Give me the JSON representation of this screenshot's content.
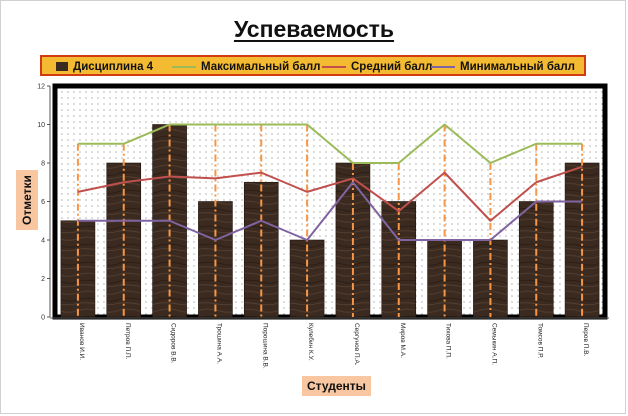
{
  "chart_data": {
    "type": "bar",
    "title": "Успеваемость",
    "xlabel": "Студенты",
    "ylabel": "Отметки",
    "ylim": [
      0,
      12
    ],
    "yticks": [
      0,
      2,
      4,
      6,
      8,
      10,
      12
    ],
    "grid": false,
    "legend_position": "top",
    "categories": [
      "Иванов И.И.",
      "Петров П.П.",
      "Сидоров В.В.",
      "Трошина А.А.",
      "Порошина В.В.",
      "Кулебин К.У.",
      "Сергунов П.А.",
      "Миров М.А.",
      "Тихова П.П.",
      "Семыкин А.П.",
      "Томсов П.Р.",
      "Перов П.В."
    ],
    "series": [
      {
        "name": "Дисциплина 4",
        "kind": "bar",
        "color": "#3a2a20",
        "values": [
          5,
          8,
          10,
          6,
          7,
          4,
          8,
          6,
          4,
          4,
          6,
          8
        ]
      },
      {
        "name": "Максимальный балл",
        "kind": "line",
        "color": "#9bbb59",
        "values": [
          9,
          9,
          10,
          10,
          10,
          10,
          8,
          8,
          10,
          8,
          9,
          9
        ]
      },
      {
        "name": "Средний балл",
        "kind": "line",
        "color": "#c0504d",
        "values": [
          6.5,
          7,
          7.3,
          7.2,
          7.5,
          6.5,
          7.2,
          5.5,
          7.5,
          5,
          7,
          7.8
        ]
      },
      {
        "name": "Минимальный балл",
        "kind": "line",
        "color": "#8064a2",
        "values": [
          5,
          5,
          5,
          4,
          5,
          4,
          7,
          4,
          4,
          4,
          6,
          6
        ]
      }
    ],
    "drop_line_color": "#f79646"
  }
}
